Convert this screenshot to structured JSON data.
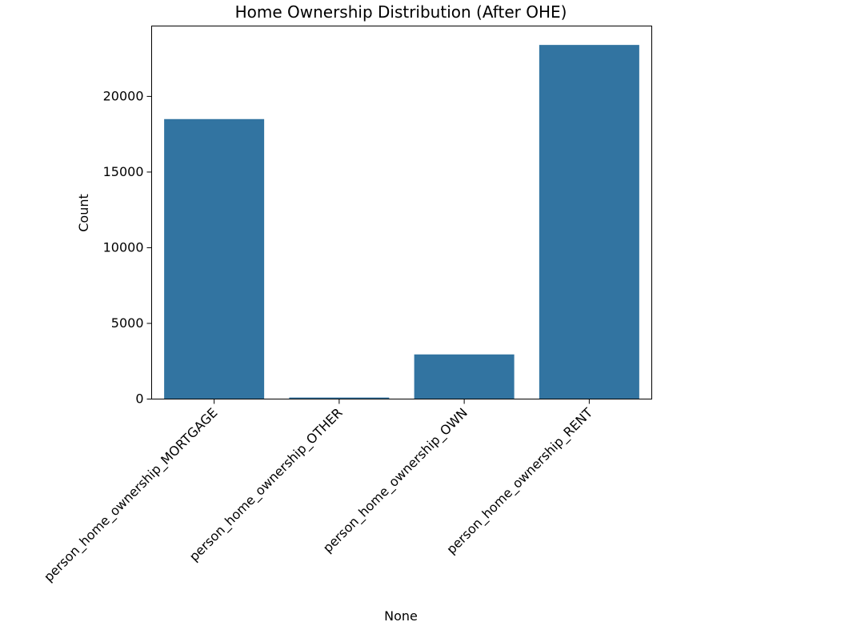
{
  "chart_data": {
    "type": "bar",
    "title": "Home Ownership Distribution (After OHE)",
    "xlabel": "None",
    "ylabel": "Count",
    "categories": [
      "person_home_ownership_MORTGAGE",
      "person_home_ownership_OTHER",
      "person_home_ownership_OWN",
      "person_home_ownership_RENT"
    ],
    "values": [
      18500,
      100,
      2950,
      23400
    ],
    "ylim": [
      0,
      24650
    ],
    "yticks": [
      0,
      5000,
      10000,
      15000,
      20000
    ],
    "ytick_labels": [
      "0",
      "5000",
      "10000",
      "15000",
      "20000"
    ],
    "bar_color": "#3274a1",
    "grid": false,
    "legend": "none"
  }
}
